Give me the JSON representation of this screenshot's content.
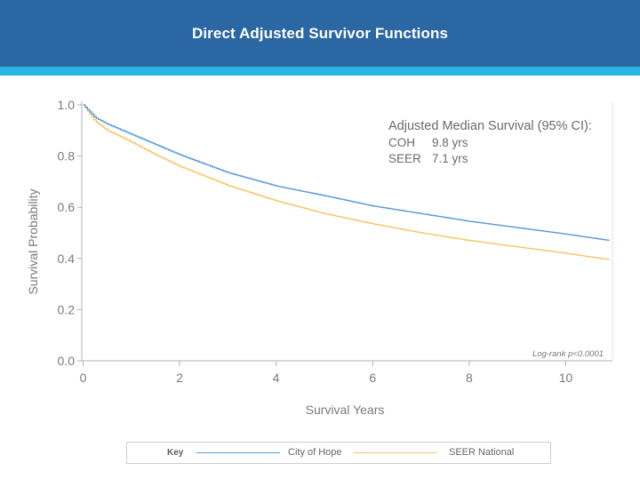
{
  "header": {
    "title": "Direct Adjusted Survivor Functions",
    "bg_color": "#2b67a2",
    "stripe_color": "#2ab4e4"
  },
  "chart_data": {
    "type": "line",
    "title": "Direct Adjusted Survivor Functions",
    "xlabel": "Survival Years",
    "ylabel": "Survival Probability",
    "xlim": [
      0,
      10.9
    ],
    "ylim": [
      0,
      1.0
    ],
    "xticks": [
      0,
      2,
      4,
      6,
      8,
      10
    ],
    "yticks": [
      0.0,
      0.2,
      0.4,
      0.6,
      0.8,
      1.0
    ],
    "ytick_labels": [
      "0.0",
      "0.2",
      "0.4",
      "0.6",
      "0.8",
      "1.0"
    ],
    "grid": false,
    "legend_placement": "bottom",
    "series": [
      {
        "name": "City of Hope",
        "color": "#5b9bd5",
        "x": [
          0,
          0.25,
          0.5,
          1.0,
          1.5,
          2.0,
          3.0,
          4.0,
          5.0,
          6.0,
          7.0,
          8.0,
          9.0,
          10.0,
          10.9
        ],
        "y": [
          1.0,
          0.95,
          0.925,
          0.885,
          0.845,
          0.805,
          0.735,
          0.683,
          0.645,
          0.605,
          0.575,
          0.545,
          0.52,
          0.495,
          0.47
        ]
      },
      {
        "name": "SEER National",
        "color": "#f5c766",
        "x": [
          0,
          0.25,
          0.5,
          1.0,
          1.5,
          2.0,
          3.0,
          4.0,
          5.0,
          6.0,
          7.0,
          8.0,
          9.0,
          10.0,
          10.9
        ],
        "y": [
          1.0,
          0.935,
          0.9,
          0.855,
          0.805,
          0.76,
          0.685,
          0.625,
          0.575,
          0.535,
          0.5,
          0.47,
          0.445,
          0.42,
          0.395
        ]
      }
    ],
    "annotations": {
      "median_title": "Adjusted Median Survival (95% CI):",
      "rows": [
        {
          "label": "COH",
          "value": "9.8 yrs"
        },
        {
          "label": "SEER",
          "value": "7.1 yrs"
        }
      ],
      "logrank": "Log-rank p<0.0001"
    }
  },
  "legend": {
    "key_label": "Key",
    "items": [
      {
        "label": "City of Hope",
        "color": "#5b9bd5"
      },
      {
        "label": "SEER National",
        "color": "#f5c766"
      }
    ]
  }
}
